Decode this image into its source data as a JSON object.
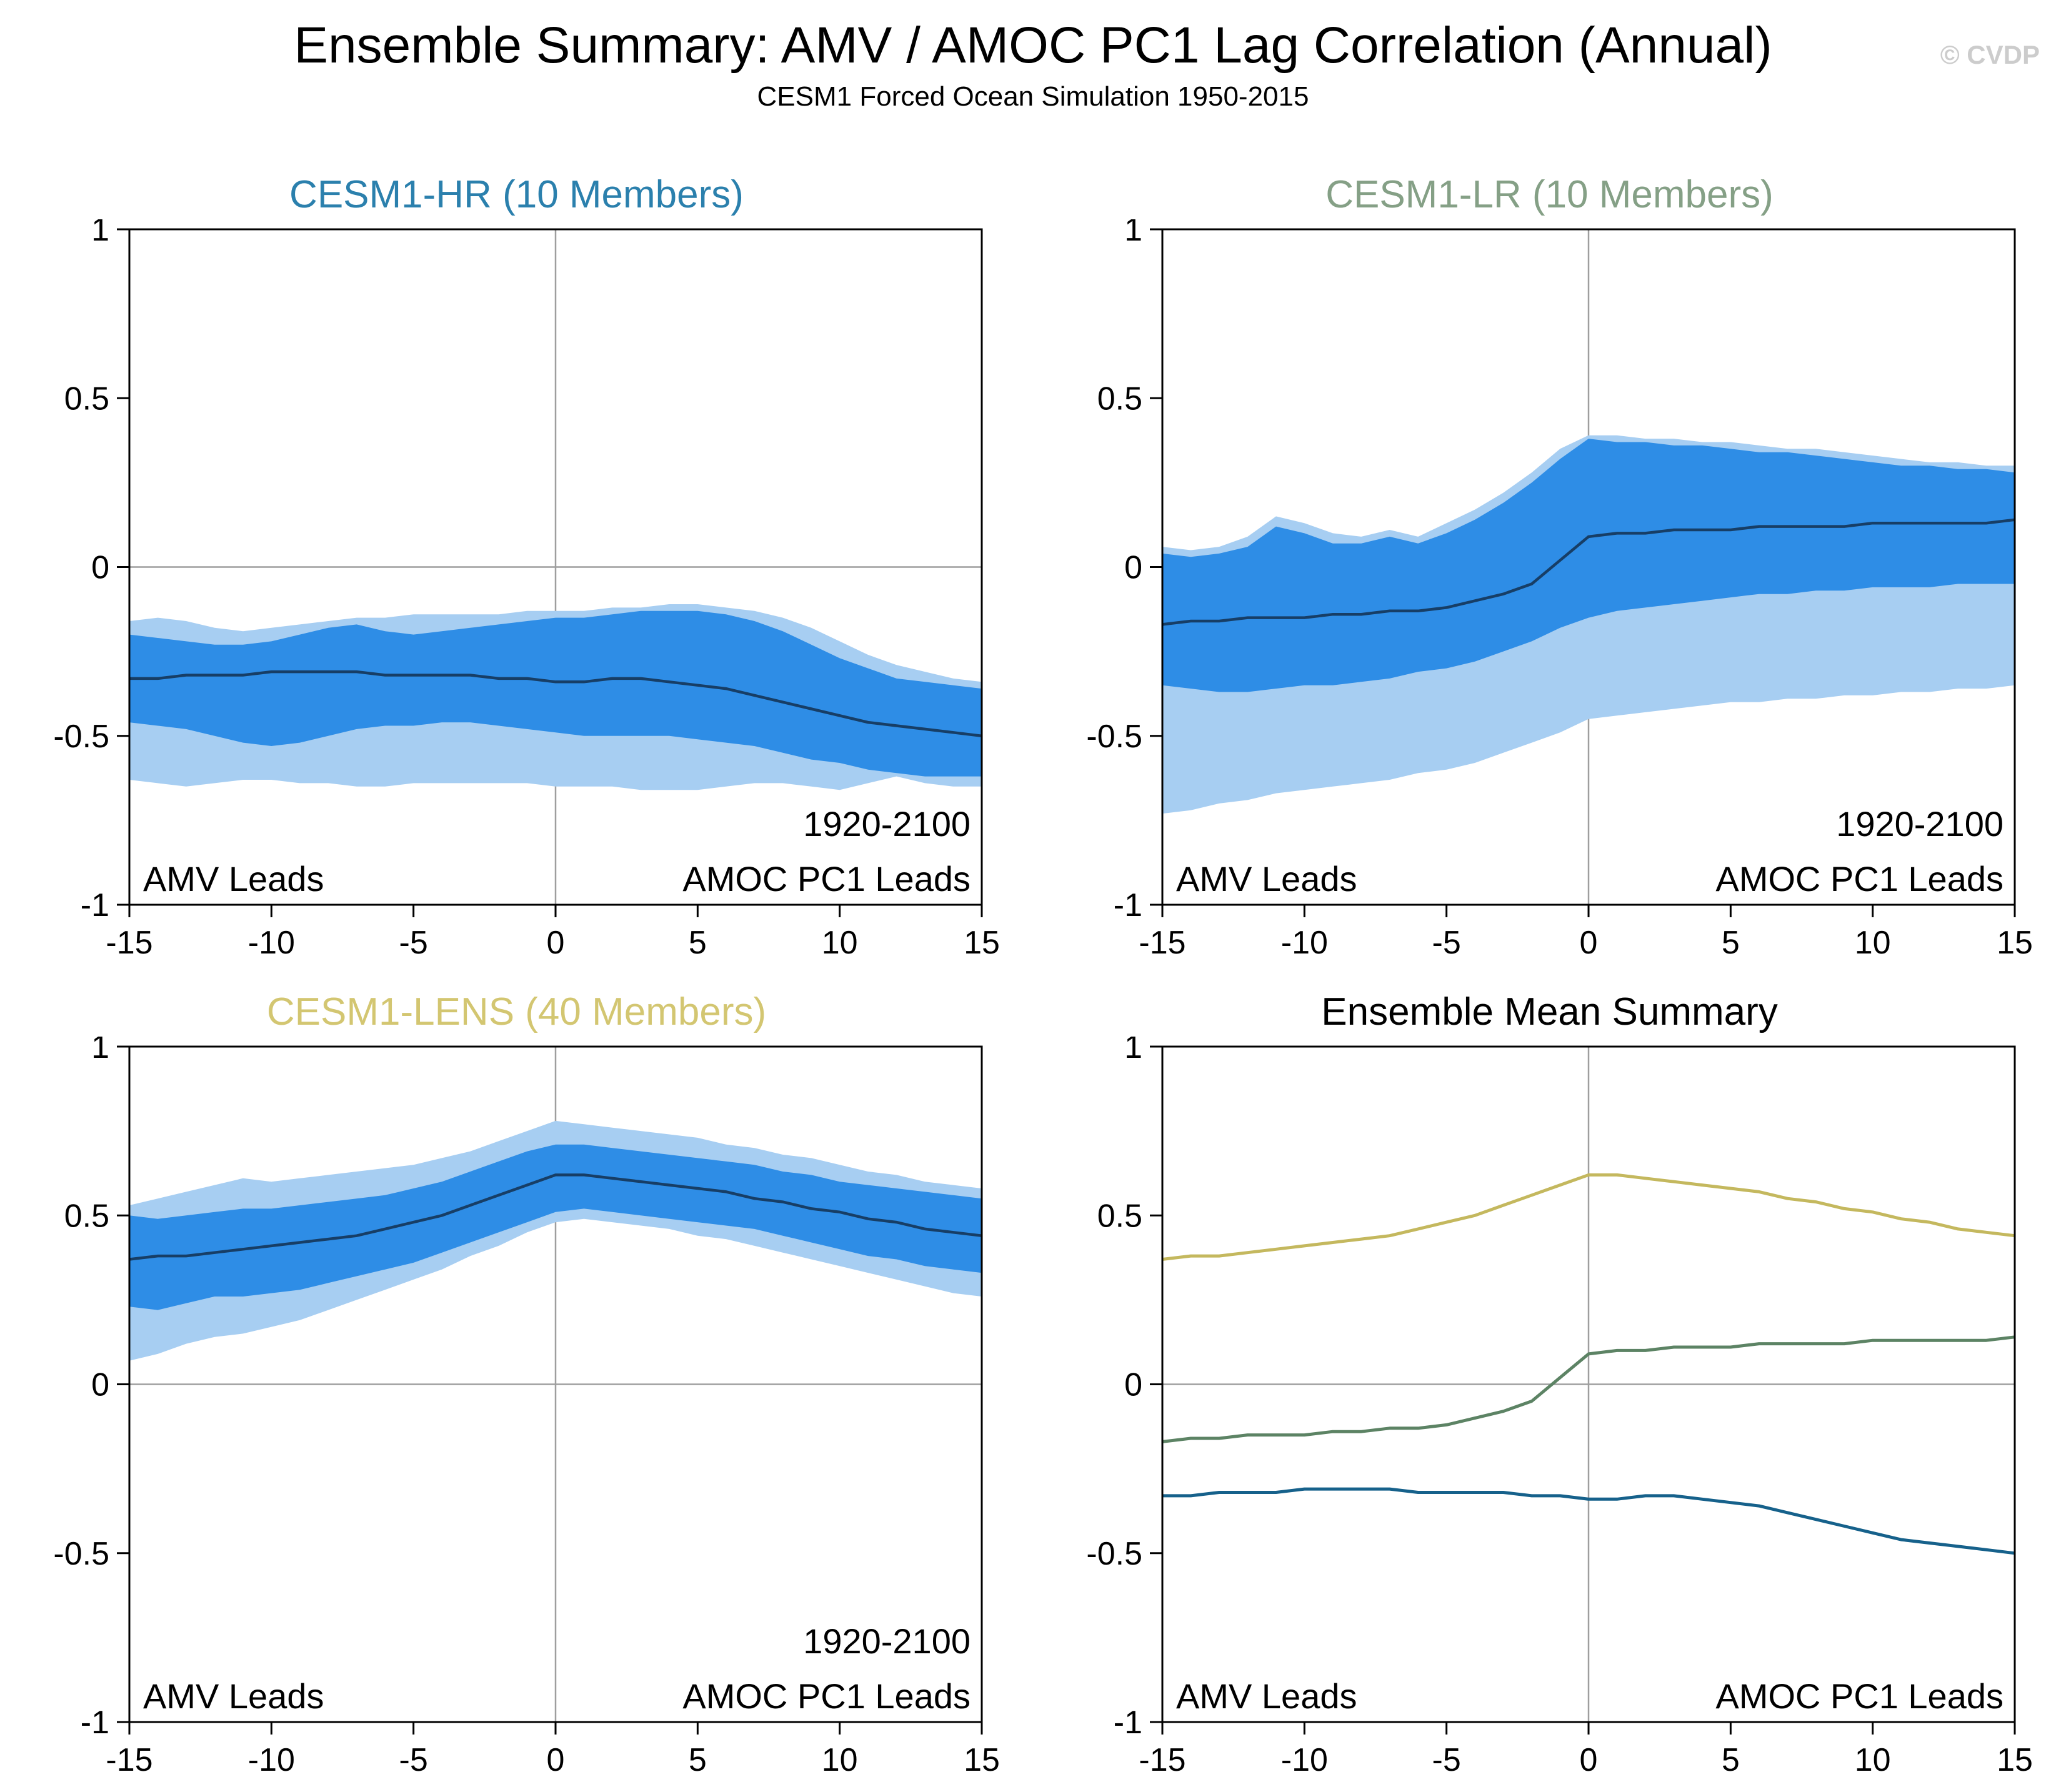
{
  "header": {
    "title": "Ensemble Summary: AMV / AMOC PC1 Lag Correlation (Annual)",
    "subtitle": "CESM1 Forced Ocean Simulation 1950-2015",
    "watermark": "© CVDP"
  },
  "colors": {
    "band_outer": "#a7cef2",
    "band_inner": "#2e8de6",
    "mean_line": "#173e66",
    "zero_line": "#9e9e9e",
    "frame": "#000000",
    "hr_title": "#2b80ad",
    "lr_title": "#85a086",
    "lens_title": "#d3c671",
    "summary_title": "#000000",
    "hr_line": "#16618b",
    "lr_line": "#5c8364",
    "lens_line": "#c4b85e"
  },
  "axes": {
    "xlim": [
      -15,
      15
    ],
    "ylim": [
      -1,
      1
    ],
    "xtick_values": [
      -15,
      -10,
      -5,
      0,
      5,
      10,
      15
    ],
    "xtick_labels": [
      "-15",
      "-10",
      "-5",
      "0",
      "5",
      "10",
      "15"
    ],
    "ytick_values": [
      1,
      0.5,
      0,
      -0.5,
      -1
    ],
    "ytick_labels": [
      "1",
      "0.5",
      "0",
      "-0.5",
      "-1"
    ]
  },
  "chart_data": [
    {
      "type": "area",
      "title": "CESM1-HR (10 Members)",
      "title_color": "hr_title",
      "xlim": [
        -15,
        15
      ],
      "ylim": [
        -1,
        1
      ],
      "x": [
        -15,
        -14,
        -13,
        -12,
        -11,
        -10,
        -9,
        -8,
        -7,
        -6,
        -5,
        -4,
        -3,
        -2,
        -1,
        0,
        1,
        2,
        3,
        4,
        5,
        6,
        7,
        8,
        9,
        10,
        11,
        12,
        13,
        14,
        15
      ],
      "labels": {
        "left": "AMV Leads",
        "right": "AMOC PC1 Leads",
        "period": "1920-2100"
      },
      "bands": {
        "outer_upper": [
          -0.16,
          -0.15,
          -0.16,
          -0.18,
          -0.19,
          -0.18,
          -0.17,
          -0.16,
          -0.15,
          -0.15,
          -0.14,
          -0.14,
          -0.14,
          -0.14,
          -0.13,
          -0.13,
          -0.13,
          -0.12,
          -0.12,
          -0.11,
          -0.11,
          -0.12,
          -0.13,
          -0.15,
          -0.18,
          -0.22,
          -0.26,
          -0.29,
          -0.31,
          -0.33,
          -0.34
        ],
        "outer_lower": [
          -0.63,
          -0.64,
          -0.65,
          -0.64,
          -0.63,
          -0.63,
          -0.64,
          -0.64,
          -0.65,
          -0.65,
          -0.64,
          -0.64,
          -0.64,
          -0.64,
          -0.64,
          -0.65,
          -0.65,
          -0.65,
          -0.66,
          -0.66,
          -0.66,
          -0.65,
          -0.64,
          -0.64,
          -0.65,
          -0.66,
          -0.64,
          -0.62,
          -0.64,
          -0.65,
          -0.65
        ],
        "inner_upper": [
          -0.2,
          -0.21,
          -0.22,
          -0.23,
          -0.23,
          -0.22,
          -0.2,
          -0.18,
          -0.17,
          -0.19,
          -0.2,
          -0.19,
          -0.18,
          -0.17,
          -0.16,
          -0.15,
          -0.15,
          -0.14,
          -0.13,
          -0.13,
          -0.13,
          -0.14,
          -0.16,
          -0.19,
          -0.23,
          -0.27,
          -0.3,
          -0.33,
          -0.34,
          -0.35,
          -0.36
        ],
        "inner_lower": [
          -0.46,
          -0.47,
          -0.48,
          -0.5,
          -0.52,
          -0.53,
          -0.52,
          -0.5,
          -0.48,
          -0.47,
          -0.47,
          -0.46,
          -0.46,
          -0.47,
          -0.48,
          -0.49,
          -0.5,
          -0.5,
          -0.5,
          -0.5,
          -0.51,
          -0.52,
          -0.53,
          -0.55,
          -0.57,
          -0.58,
          -0.6,
          -0.61,
          -0.62,
          -0.62,
          -0.62
        ]
      },
      "mean": [
        -0.33,
        -0.33,
        -0.32,
        -0.32,
        -0.32,
        -0.31,
        -0.31,
        -0.31,
        -0.31,
        -0.32,
        -0.32,
        -0.32,
        -0.32,
        -0.33,
        -0.33,
        -0.34,
        -0.34,
        -0.33,
        -0.33,
        -0.34,
        -0.35,
        -0.36,
        -0.38,
        -0.4,
        -0.42,
        -0.44,
        -0.46,
        -0.47,
        -0.48,
        -0.49,
        -0.5
      ]
    },
    {
      "type": "area",
      "title": "CESM1-LR (10 Members)",
      "title_color": "lr_title",
      "xlim": [
        -15,
        15
      ],
      "ylim": [
        -1,
        1
      ],
      "x": [
        -15,
        -14,
        -13,
        -12,
        -11,
        -10,
        -9,
        -8,
        -7,
        -6,
        -5,
        -4,
        -3,
        -2,
        -1,
        0,
        1,
        2,
        3,
        4,
        5,
        6,
        7,
        8,
        9,
        10,
        11,
        12,
        13,
        14,
        15
      ],
      "labels": {
        "left": "AMV Leads",
        "right": "AMOC PC1 Leads",
        "period": "1920-2100"
      },
      "bands": {
        "outer_upper": [
          0.06,
          0.05,
          0.06,
          0.09,
          0.15,
          0.13,
          0.1,
          0.09,
          0.11,
          0.09,
          0.13,
          0.17,
          0.22,
          0.28,
          0.35,
          0.39,
          0.39,
          0.38,
          0.38,
          0.37,
          0.37,
          0.36,
          0.35,
          0.35,
          0.34,
          0.33,
          0.32,
          0.31,
          0.31,
          0.3,
          0.3
        ],
        "outer_lower": [
          -0.73,
          -0.72,
          -0.7,
          -0.69,
          -0.67,
          -0.66,
          -0.65,
          -0.64,
          -0.63,
          -0.61,
          -0.6,
          -0.58,
          -0.55,
          -0.52,
          -0.49,
          -0.45,
          -0.44,
          -0.43,
          -0.42,
          -0.41,
          -0.4,
          -0.4,
          -0.39,
          -0.39,
          -0.38,
          -0.38,
          -0.37,
          -0.37,
          -0.36,
          -0.36,
          -0.35
        ],
        "inner_upper": [
          0.04,
          0.03,
          0.04,
          0.06,
          0.12,
          0.1,
          0.07,
          0.07,
          0.09,
          0.07,
          0.1,
          0.14,
          0.19,
          0.25,
          0.32,
          0.38,
          0.37,
          0.37,
          0.36,
          0.36,
          0.35,
          0.34,
          0.34,
          0.33,
          0.32,
          0.31,
          0.3,
          0.3,
          0.29,
          0.29,
          0.28
        ],
        "inner_lower": [
          -0.35,
          -0.36,
          -0.37,
          -0.37,
          -0.36,
          -0.35,
          -0.35,
          -0.34,
          -0.33,
          -0.31,
          -0.3,
          -0.28,
          -0.25,
          -0.22,
          -0.18,
          -0.15,
          -0.13,
          -0.12,
          -0.11,
          -0.1,
          -0.09,
          -0.08,
          -0.08,
          -0.07,
          -0.07,
          -0.06,
          -0.06,
          -0.06,
          -0.05,
          -0.05,
          -0.05
        ]
      },
      "mean": [
        -0.17,
        -0.16,
        -0.16,
        -0.15,
        -0.15,
        -0.15,
        -0.14,
        -0.14,
        -0.13,
        -0.13,
        -0.12,
        -0.1,
        -0.08,
        -0.05,
        0.02,
        0.09,
        0.1,
        0.1,
        0.11,
        0.11,
        0.11,
        0.12,
        0.12,
        0.12,
        0.12,
        0.13,
        0.13,
        0.13,
        0.13,
        0.13,
        0.14
      ]
    },
    {
      "type": "area",
      "title": "CESM1-LENS (40 Members)",
      "title_color": "lens_title",
      "xlim": [
        -15,
        15
      ],
      "ylim": [
        -1,
        1
      ],
      "x": [
        -15,
        -14,
        -13,
        -12,
        -11,
        -10,
        -9,
        -8,
        -7,
        -6,
        -5,
        -4,
        -3,
        -2,
        -1,
        0,
        1,
        2,
        3,
        4,
        5,
        6,
        7,
        8,
        9,
        10,
        11,
        12,
        13,
        14,
        15
      ],
      "labels": {
        "left": "AMV Leads",
        "right": "AMOC PC1 Leads",
        "period": "1920-2100"
      },
      "bands": {
        "outer_upper": [
          0.53,
          0.55,
          0.57,
          0.59,
          0.61,
          0.6,
          0.61,
          0.62,
          0.63,
          0.64,
          0.65,
          0.67,
          0.69,
          0.72,
          0.75,
          0.78,
          0.77,
          0.76,
          0.75,
          0.74,
          0.73,
          0.71,
          0.7,
          0.68,
          0.67,
          0.65,
          0.63,
          0.62,
          0.6,
          0.59,
          0.58
        ],
        "outer_lower": [
          0.07,
          0.09,
          0.12,
          0.14,
          0.15,
          0.17,
          0.19,
          0.22,
          0.25,
          0.28,
          0.31,
          0.34,
          0.38,
          0.41,
          0.45,
          0.48,
          0.49,
          0.48,
          0.47,
          0.46,
          0.44,
          0.43,
          0.41,
          0.39,
          0.37,
          0.35,
          0.33,
          0.31,
          0.29,
          0.27,
          0.26
        ],
        "inner_upper": [
          0.5,
          0.49,
          0.5,
          0.51,
          0.52,
          0.52,
          0.53,
          0.54,
          0.55,
          0.56,
          0.58,
          0.6,
          0.63,
          0.66,
          0.69,
          0.71,
          0.71,
          0.7,
          0.69,
          0.68,
          0.67,
          0.66,
          0.65,
          0.63,
          0.62,
          0.6,
          0.59,
          0.58,
          0.57,
          0.56,
          0.55
        ],
        "inner_lower": [
          0.23,
          0.22,
          0.24,
          0.26,
          0.26,
          0.27,
          0.28,
          0.3,
          0.32,
          0.34,
          0.36,
          0.39,
          0.42,
          0.45,
          0.48,
          0.51,
          0.52,
          0.51,
          0.5,
          0.49,
          0.48,
          0.47,
          0.46,
          0.44,
          0.42,
          0.4,
          0.38,
          0.37,
          0.35,
          0.34,
          0.33
        ]
      },
      "mean": [
        0.37,
        0.38,
        0.38,
        0.39,
        0.4,
        0.41,
        0.42,
        0.43,
        0.44,
        0.46,
        0.48,
        0.5,
        0.53,
        0.56,
        0.59,
        0.62,
        0.62,
        0.61,
        0.6,
        0.59,
        0.58,
        0.57,
        0.55,
        0.54,
        0.52,
        0.51,
        0.49,
        0.48,
        0.46,
        0.45,
        0.44
      ]
    },
    {
      "type": "line",
      "title": "Ensemble Mean Summary",
      "title_color": "summary_title",
      "xlim": [
        -15,
        15
      ],
      "ylim": [
        -1,
        1
      ],
      "x": [
        -15,
        -14,
        -13,
        -12,
        -11,
        -10,
        -9,
        -8,
        -7,
        -6,
        -5,
        -4,
        -3,
        -2,
        -1,
        0,
        1,
        2,
        3,
        4,
        5,
        6,
        7,
        8,
        9,
        10,
        11,
        12,
        13,
        14,
        15
      ],
      "labels": {
        "left": "AMV Leads",
        "right": "AMOC PC1 Leads"
      },
      "series": [
        {
          "name": "CESM1-LENS",
          "color": "lens_line",
          "values": [
            0.37,
            0.38,
            0.38,
            0.39,
            0.4,
            0.41,
            0.42,
            0.43,
            0.44,
            0.46,
            0.48,
            0.5,
            0.53,
            0.56,
            0.59,
            0.62,
            0.62,
            0.61,
            0.6,
            0.59,
            0.58,
            0.57,
            0.55,
            0.54,
            0.52,
            0.51,
            0.49,
            0.48,
            0.46,
            0.45,
            0.44
          ]
        },
        {
          "name": "CESM1-LR",
          "color": "lr_line",
          "values": [
            -0.17,
            -0.16,
            -0.16,
            -0.15,
            -0.15,
            -0.15,
            -0.14,
            -0.14,
            -0.13,
            -0.13,
            -0.12,
            -0.1,
            -0.08,
            -0.05,
            0.02,
            0.09,
            0.1,
            0.1,
            0.11,
            0.11,
            0.11,
            0.12,
            0.12,
            0.12,
            0.12,
            0.13,
            0.13,
            0.13,
            0.13,
            0.13,
            0.14
          ]
        },
        {
          "name": "CESM1-HR",
          "color": "hr_line",
          "values": [
            -0.33,
            -0.33,
            -0.32,
            -0.32,
            -0.32,
            -0.31,
            -0.31,
            -0.31,
            -0.31,
            -0.32,
            -0.32,
            -0.32,
            -0.32,
            -0.33,
            -0.33,
            -0.34,
            -0.34,
            -0.33,
            -0.33,
            -0.34,
            -0.35,
            -0.36,
            -0.38,
            -0.4,
            -0.42,
            -0.44,
            -0.46,
            -0.47,
            -0.48,
            -0.49,
            -0.5
          ]
        }
      ]
    }
  ]
}
